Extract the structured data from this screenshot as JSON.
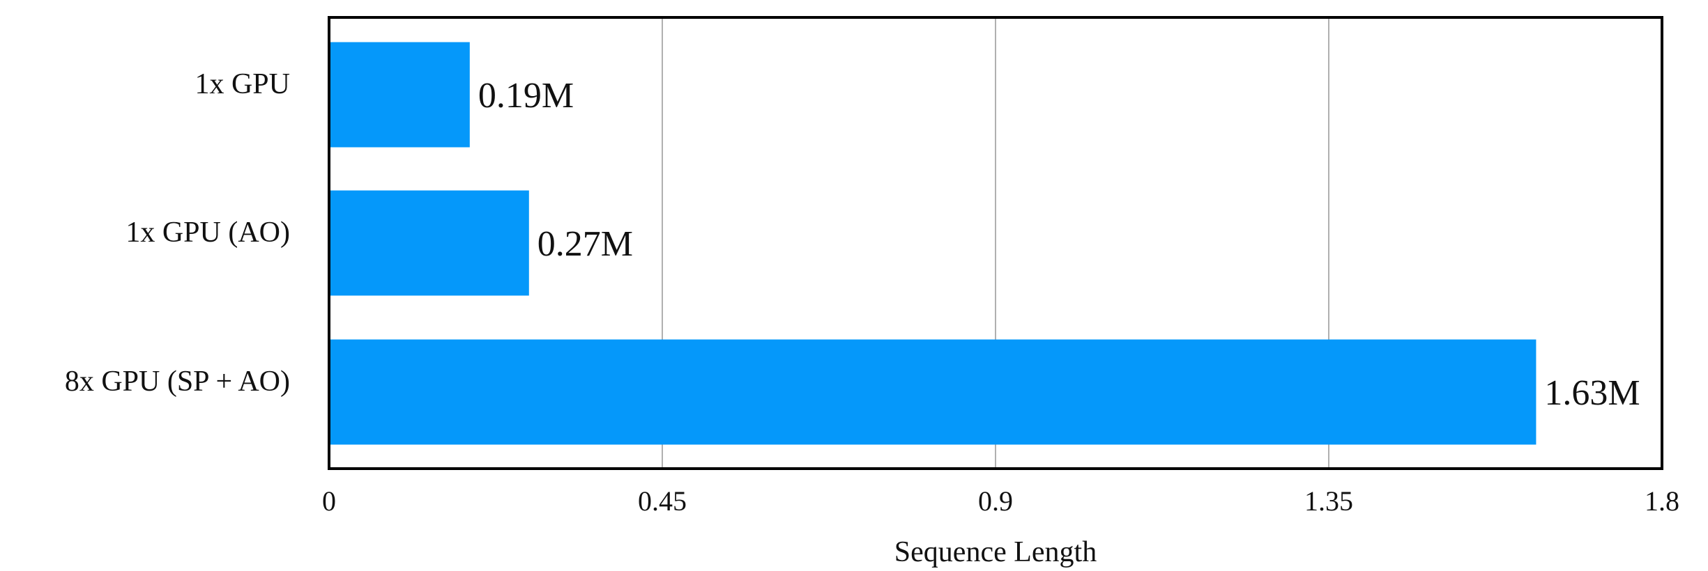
{
  "chart_data": {
    "type": "bar",
    "orientation": "horizontal",
    "categories": [
      "1x GPU",
      "1x GPU (AO)",
      "8x GPU (SP + AO)"
    ],
    "values": [
      0.19,
      0.27,
      1.63
    ],
    "value_labels": [
      "0.19M",
      "0.27M",
      "1.63M"
    ],
    "xlabel": "Sequence Length",
    "ylabel": "",
    "title": "",
    "xlim": [
      0,
      1.8
    ],
    "xticks": [
      0,
      0.45,
      0.9,
      1.35,
      1.8
    ],
    "xtick_labels": [
      "0",
      "0.45",
      "0.9",
      "1.35",
      "1.8"
    ],
    "grid": "vertical",
    "legend": "none",
    "colors": {
      "bar": "#0598FA",
      "grid": "#b0b0b0",
      "frame": "#000000"
    }
  }
}
